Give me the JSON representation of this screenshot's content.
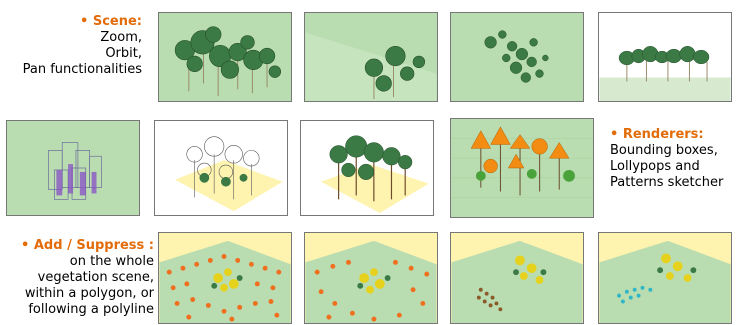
{
  "scene": {
    "heading": "• Scene:",
    "lines": [
      "Zoom,",
      "Orbit,",
      "Pan functionalities"
    ]
  },
  "renderers": {
    "heading": "• Renderers:",
    "lines": [
      "Bounding boxes,",
      "Lollypops and",
      "Patterns sketcher"
    ]
  },
  "add_suppress": {
    "heading": "• Add / Suppress :",
    "lines": [
      "on the whole",
      "vegetation scene,",
      "within a polygon, or",
      "following a polyline"
    ]
  },
  "colors": {
    "accent": "#e36c0a",
    "ground_green": "#b9dcb0",
    "ground_sand": "#fff3b0",
    "tree_green": "#3b7a45",
    "tree_orange": "#f28c12",
    "box_purple": "#8a4fc7",
    "dot_orange": "#ef6f1e",
    "dot_brown": "#8b5a2b",
    "dot_cyan": "#2fb7c7"
  }
}
